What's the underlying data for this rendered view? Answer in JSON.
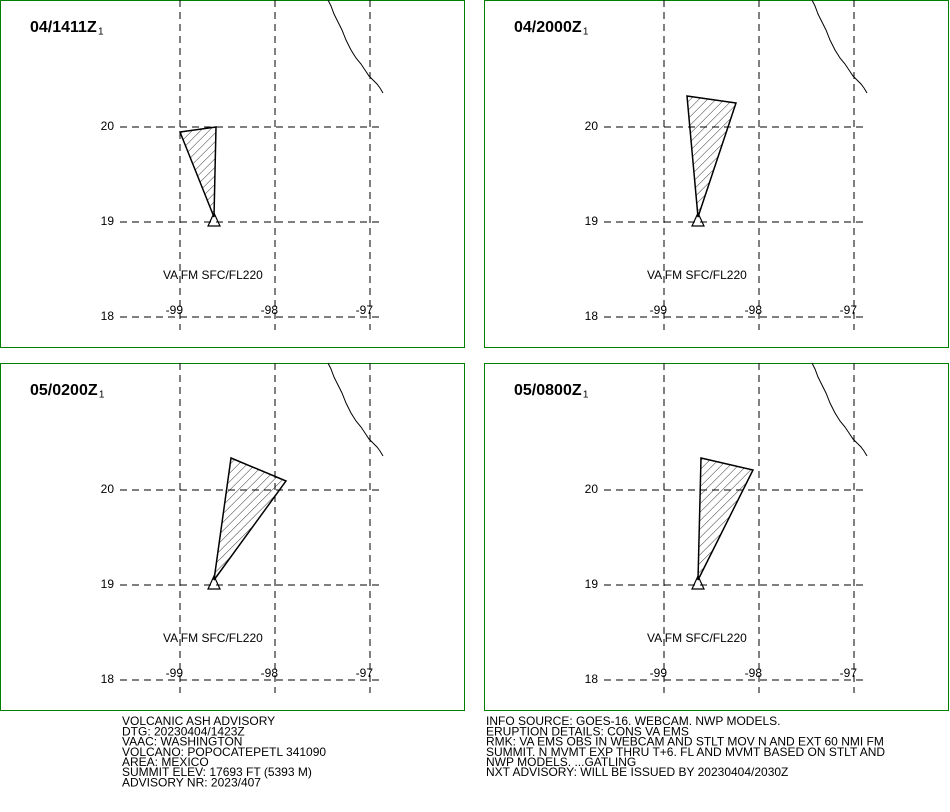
{
  "panels": [
    {
      "time": "04/1411Z",
      "time_suffix": "1",
      "label": "VA FM SFC/FL220"
    },
    {
      "time": "04/2000Z",
      "time_suffix": "1",
      "label": "VA FM SFC/FL220"
    },
    {
      "time": "05/0200Z",
      "time_suffix": "1",
      "label": "VA FM SFC/FL220"
    },
    {
      "time": "05/0800Z",
      "time_suffix": "1",
      "label": "VA FM SFC/FL220"
    }
  ],
  "lat_labels": [
    "20",
    "19",
    "18"
  ],
  "lon_labels": [
    "-99",
    "-98",
    "-97"
  ],
  "advisory_left": [
    "VOLCANIC ASH ADVISORY",
    "DTG: 20230404/1423Z",
    "VAAC: WASHINGTON",
    "VOLCANO: POPOCATEPETL 341090",
    "AREA: MEXICO",
    "SUMMIT ELEV: 17693 FT (5393 M)",
    "ADVISORY NR: 2023/407"
  ],
  "advisory_right": [
    "INFO SOURCE: GOES-16. WEBCAM. NWP MODELS.",
    "ERUPTION DETAILS: CONS VA EMS",
    "RMK: VA EMS OBS IN WEBCAM AND STLT MOV N AND EXT 60 NMI FM",
    "SUMMIT. N MVMT EXP THRU T+6. FL AND MVMT BASED ON STLT AND",
    "NWP MODELS. ...GATLING",
    "NXT ADVISORY: WILL BE ISSUED BY 20230404/2030Z"
  ]
}
